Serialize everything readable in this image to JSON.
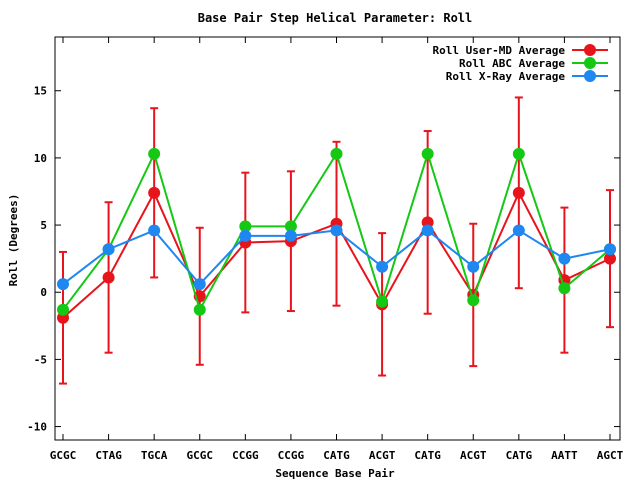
{
  "chart_data": {
    "type": "line",
    "title": "Base Pair Step Helical Parameter: Roll",
    "xlabel": "Sequence Base Pair",
    "ylabel": "Roll (Degrees)",
    "categories": [
      "GCGC",
      "CTAG",
      "TGCA",
      "GCGC",
      "CCGG",
      "CCGG",
      "CATG",
      "ACGT",
      "CATG",
      "ACGT",
      "CATG",
      "AATT",
      "AGCT"
    ],
    "ylim": [
      -11,
      19
    ],
    "yticks": [
      -10,
      -5,
      0,
      5,
      10,
      15
    ],
    "legend_position": "top-right",
    "series": [
      {
        "name": "Roll User-MD Average",
        "color": "#e8141c",
        "values": [
          -1.9,
          1.1,
          7.4,
          -0.3,
          3.7,
          3.8,
          5.1,
          -0.9,
          5.2,
          -0.2,
          7.4,
          0.9,
          2.5
        ],
        "error": [
          4.9,
          5.6,
          6.3,
          5.1,
          5.2,
          5.2,
          6.1,
          5.3,
          6.8,
          5.3,
          7.1,
          5.4,
          5.1
        ]
      },
      {
        "name": "Roll ABC Average",
        "color": "#14c814",
        "values": [
          -1.3,
          3.2,
          10.3,
          -1.3,
          4.9,
          4.9,
          10.3,
          -0.7,
          10.3,
          -0.6,
          10.3,
          0.3,
          3.2
        ]
      },
      {
        "name": "Roll X-Ray Average",
        "color": "#1e87f0",
        "values": [
          0.6,
          3.2,
          4.6,
          0.6,
          4.2,
          4.2,
          4.6,
          1.9,
          4.6,
          1.9,
          4.6,
          2.5,
          3.2
        ]
      }
    ]
  }
}
